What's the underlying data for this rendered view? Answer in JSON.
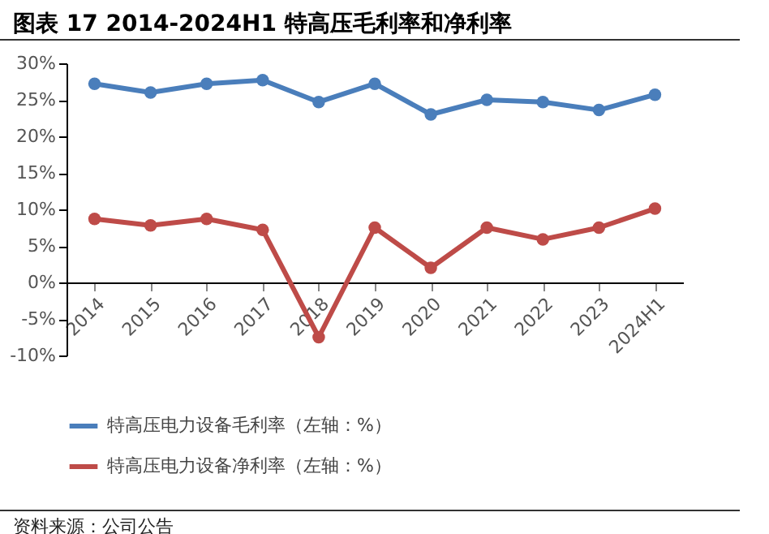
{
  "chart_data": {
    "type": "line",
    "title": "图表 17 2014-2024H1 特高压毛利率和净利率",
    "categories": [
      "2014",
      "2015",
      "2016",
      "2017",
      "2018",
      "2019",
      "2020",
      "2021",
      "2022",
      "2023",
      "2024H1"
    ],
    "series": [
      {
        "name": "特高压电力设备毛利率（左轴：%）",
        "color": "#4a7ebb",
        "values": [
          27.2,
          26.0,
          27.2,
          27.7,
          24.7,
          27.2,
          23.0,
          25.0,
          24.7,
          23.6,
          25.7
        ]
      },
      {
        "name": "特高压电力设备净利率（左轴：%）",
        "color": "#be4b48",
        "values": [
          8.7,
          7.8,
          8.7,
          7.2,
          -7.5,
          7.5,
          2.0,
          7.5,
          5.9,
          7.5,
          10.1
        ]
      }
    ],
    "ylim": [
      -10,
      30
    ],
    "yticks": [
      {
        "value": -10,
        "label": "-10%"
      },
      {
        "value": -5,
        "label": "-5%"
      },
      {
        "value": 0,
        "label": "0%"
      },
      {
        "value": 5,
        "label": "5%"
      },
      {
        "value": 10,
        "label": "10%"
      },
      {
        "value": 15,
        "label": "15%"
      },
      {
        "value": 20,
        "label": "20%"
      },
      {
        "value": 25,
        "label": "25%"
      },
      {
        "value": 30,
        "label": "30%"
      }
    ],
    "grid": false,
    "legend": "bottom",
    "marker": "circle",
    "line_style": "solid",
    "annotations": [
      "资料来源：公司公告"
    ]
  }
}
